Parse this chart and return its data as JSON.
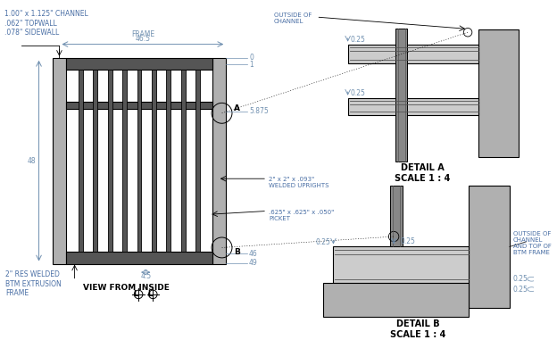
{
  "bg_color": "#ffffff",
  "line_color": "#000000",
  "gray_fill": "#b0b0b0",
  "dark_gray": "#555555",
  "mid_gray": "#888888",
  "light_gray": "#cccccc",
  "text_color_blue": "#4a6fa5",
  "dim_color": "#7090b0",
  "labels": {
    "channel": "1.00\" x 1.125\" CHANNEL\n.062\" TOPWALL\n.078\" SIDEWALL",
    "frame_dim_top": "46.5",
    "frame_dim_bot": "FRAME",
    "height_dim": "48",
    "btm_frame": "2\" RES WELDED\nBTM EXTRUSION\nFRAME",
    "view_label": "VIEW FROM INSIDE",
    "uprights": "2\" x 2\" x .093\"\nWELDED UPRIGHTS",
    "picket": ".625\" x .625\" x .050\"\nPICKET",
    "dim_0": "0",
    "dim_1": "1",
    "dim_5875": "5.875",
    "dim_46": "46",
    "dim_49": "49",
    "dim_45": "4.5",
    "detail_a": "DETAIL A\nSCALE 1 : 4",
    "detail_b": "DETAIL B\nSCALE 1 : 4",
    "outside_channel": "OUTSIDE OF\nCHANNEL",
    "outside_channel_btm": "OUTSIDE OF\nCHANNEL\nAND TOP OF\nBTM FRAME",
    "dim_025": "0.25"
  }
}
